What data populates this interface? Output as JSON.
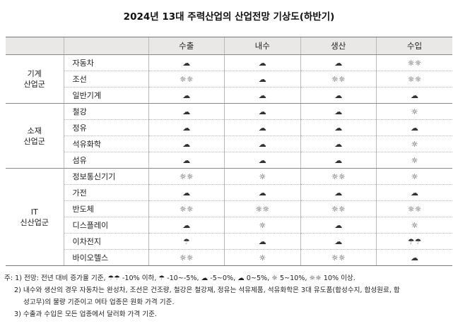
{
  "title": "2024년 13대 주력산업의 산업전망 기상도(하반기)",
  "headers": [
    "",
    "",
    "수출",
    "내수",
    "생산",
    "수입"
  ],
  "groups": [
    {
      "name": "기계\n산업군",
      "rows": [
        {
          "name": "자동차",
          "values": [
            "☁",
            "☁",
            "☁",
            "☼☼"
          ]
        },
        {
          "name": "조선",
          "values": [
            "☼☼",
            "☁",
            "☼☼",
            "☼☼"
          ]
        },
        {
          "name": "일반기계",
          "values": [
            "☁",
            "☁",
            "☁",
            "☁"
          ]
        }
      ]
    },
    {
      "name": "소재\n산업군",
      "rows": [
        {
          "name": "철강",
          "values": [
            "☁",
            "☁",
            "☁",
            "☼"
          ]
        },
        {
          "name": "정유",
          "values": [
            "☁",
            "☁",
            "☁",
            "☁"
          ]
        },
        {
          "name": "석유화학",
          "values": [
            "☁",
            "☁",
            "☁",
            "☼"
          ]
        },
        {
          "name": "섬유",
          "values": [
            "☁",
            "☁",
            "☁",
            "☼"
          ]
        }
      ]
    },
    {
      "name": "IT\n신산업군",
      "rows": [
        {
          "name": "정보통신기기",
          "values": [
            "☼☼",
            "☼",
            "☼☼",
            "☼"
          ]
        },
        {
          "name": "가전",
          "values": [
            "☁",
            "☁",
            "☁",
            "☁"
          ]
        },
        {
          "name": "반도체",
          "values": [
            "☼☼",
            "☼☼",
            "☼☼",
            "☼☼"
          ]
        },
        {
          "name": "디스플레이",
          "values": [
            "☁",
            "☼",
            "☁",
            "☼"
          ]
        },
        {
          "name": "이차전지",
          "values": [
            "☂",
            "☁",
            "☁",
            "☂☂"
          ]
        },
        {
          "name": "바이오헬스",
          "values": [
            "☼☼",
            "☼",
            "☼☼",
            "☁"
          ]
        }
      ]
    }
  ],
  "notes": [
    "주: 1) 전망: 전년 대비 증가율 기준, ☂☂ -10% 이하, ☂ -10~-5%, ☁ -5~0%, ☁ 0~5%, ☼ 5~10%, ☼☼ 10% 이상.",
    "2) 내수와 생산의 경우 자동차는 완성차, 조선은 건조량, 철강은 철강재, 정유는 석유제품, 석유화학은 3대 유도품(합성수지, 합성원료, 합",
    "성고무)의 물량 기준이고 여타 업종은 원화 가격 기준.",
    "3) 수출과 수입은 모든 업종에서 달러화 가격 기준."
  ]
}
